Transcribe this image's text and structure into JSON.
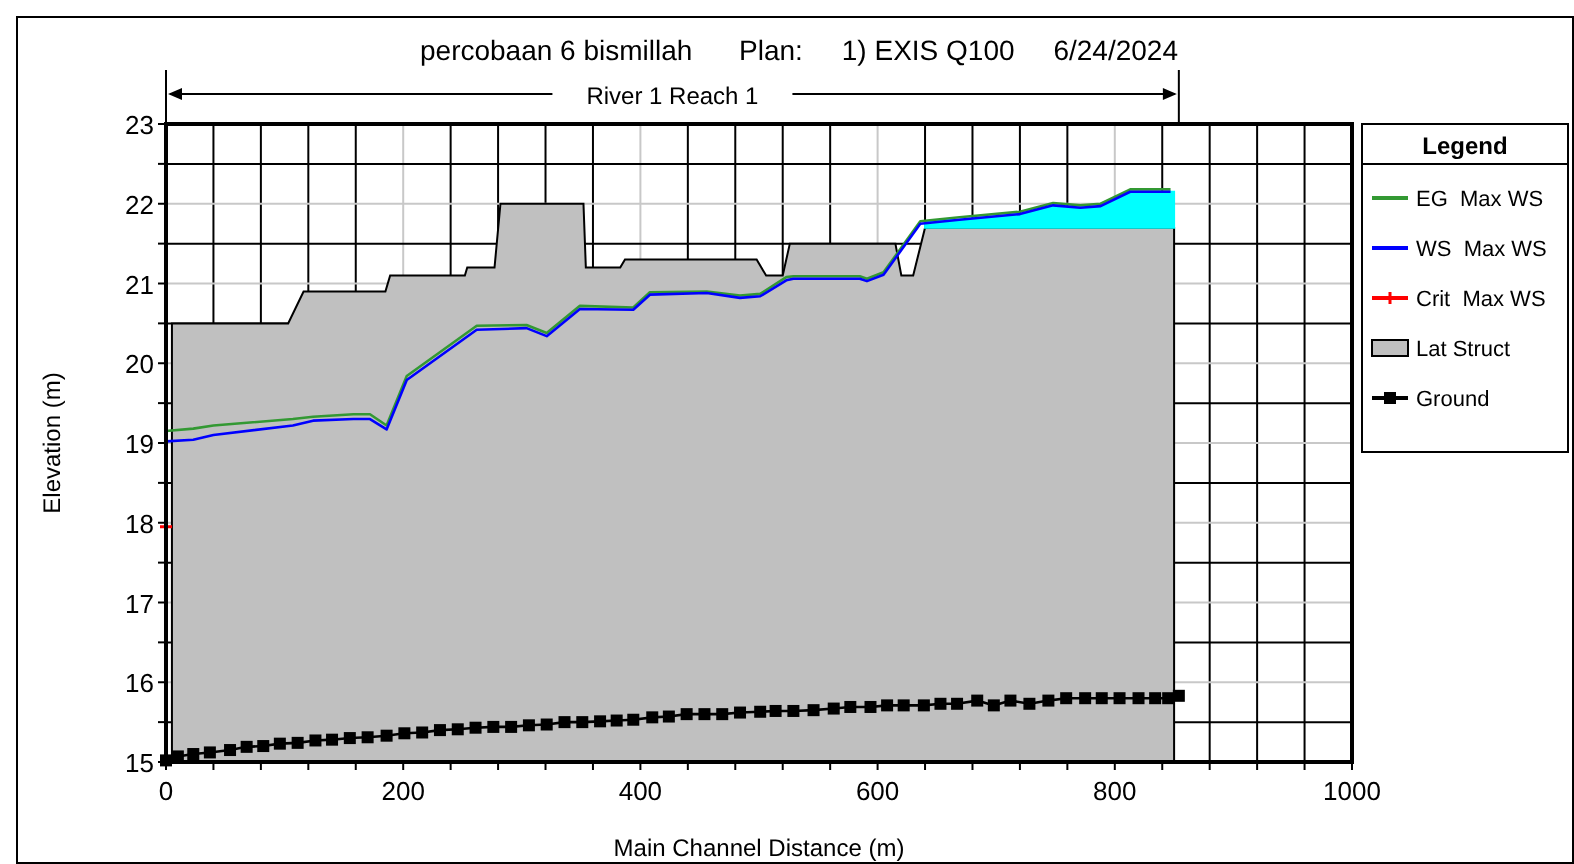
{
  "chart_data": {
    "type": "line",
    "title": "percobaan 6 bismillah      Plan:     1) EXIS Q100     6/24/2024",
    "xlabel": "Main Channel Distance (m)",
    "ylabel": "Elevation (m)",
    "legend_title": "Legend",
    "annotations": [
      "River 1 Reach 1"
    ],
    "xlim": [
      0,
      1000
    ],
    "ylim": [
      15,
      23
    ],
    "xticks": [
      0,
      {
        "value": 40,
        "label": null
      },
      {
        "value": 80,
        "label": null
      },
      {
        "value": 120,
        "label": null
      },
      {
        "value": 160,
        "label": null
      },
      200,
      {
        "value": 240,
        "label": null
      },
      {
        "value": 280,
        "label": null
      },
      {
        "value": 320,
        "label": null
      },
      {
        "value": 360,
        "label": null
      },
      400,
      {
        "value": 440,
        "label": null
      },
      {
        "value": 480,
        "label": null
      },
      {
        "value": 520,
        "label": null
      },
      {
        "value": 560,
        "label": null
      },
      600,
      {
        "value": 640,
        "label": null
      },
      {
        "value": 680,
        "label": null
      },
      {
        "value": 720,
        "label": null
      },
      {
        "value": 760,
        "label": null
      },
      800,
      {
        "value": 840,
        "label": null
      },
      {
        "value": 880,
        "label": null
      },
      {
        "value": 920,
        "label": null
      },
      {
        "value": 960,
        "label": null
      },
      1000
    ],
    "yticks": [
      15,
      {
        "value": 15.5,
        "label": null
      },
      16,
      {
        "value": 16.5,
        "label": null
      },
      17,
      {
        "value": 17.5,
        "label": null
      },
      18,
      {
        "value": 18.5,
        "label": null
      },
      19,
      {
        "value": 19.5,
        "label": null
      },
      20,
      {
        "value": 20.5,
        "label": null
      },
      21,
      {
        "value": 21.5,
        "label": null
      },
      22,
      {
        "value": 22.5,
        "label": null
      },
      23
    ],
    "grid": true,
    "legend": "right",
    "series": [
      {
        "type": "area",
        "color": "#00ffff",
        "x": [
          640,
          669,
          720,
          748,
          771,
          788,
          813,
          850
        ],
        "values": [
          21.78,
          21.8,
          21.87,
          21.98,
          21.95,
          21.97,
          22.15,
          22.15
        ]
      },
      {
        "name": "EG  Max WS",
        "color": "#339933",
        "marker": "none",
        "x": [
          0,
          23,
          40,
          107,
          124,
          158,
          172,
          186,
          203,
          262,
          304,
          321,
          349,
          394,
          408,
          456,
          484,
          501,
          523,
          529,
          585,
          591,
          605,
          636,
          669,
          720,
          748,
          771,
          788,
          813,
          847
        ],
        "values": [
          19.15,
          19.18,
          19.22,
          19.3,
          19.33,
          19.36,
          19.36,
          19.22,
          19.84,
          20.47,
          20.48,
          20.38,
          20.72,
          20.7,
          20.89,
          20.9,
          20.85,
          20.87,
          21.08,
          21.09,
          21.09,
          21.06,
          21.14,
          21.78,
          21.83,
          21.9,
          22.01,
          21.98,
          22.0,
          22.18,
          22.18
        ]
      },
      {
        "name": "WS  Max WS",
        "color": "#0000ff",
        "marker": "none",
        "x": [
          0,
          23,
          40,
          107,
          124,
          158,
          172,
          186,
          203,
          262,
          304,
          321,
          349,
          394,
          408,
          456,
          484,
          501,
          523,
          529,
          585,
          591,
          605,
          636,
          669,
          720,
          748,
          771,
          788,
          813,
          847
        ],
        "values": [
          19.02,
          19.04,
          19.1,
          19.22,
          19.28,
          19.3,
          19.3,
          19.17,
          19.79,
          20.42,
          20.44,
          20.34,
          20.68,
          20.67,
          20.86,
          20.88,
          20.82,
          20.84,
          21.04,
          21.06,
          21.06,
          21.03,
          21.11,
          21.75,
          21.8,
          21.87,
          21.98,
          21.95,
          21.97,
          22.15,
          22.15
        ]
      },
      {
        "name": "Crit  Max WS",
        "color": "#ff0000",
        "marker": "cross",
        "x": [
          0
        ],
        "values": [
          17.95
        ]
      },
      {
        "name": "Lat Struct",
        "type": "area",
        "color": "#c0c0c0",
        "x": [
          5,
          5,
          103,
          116,
          185,
          189,
          252,
          254,
          277,
          282,
          352,
          354,
          383,
          387,
          498,
          506,
          520,
          526,
          615,
          620,
          630,
          640,
          850,
          850
        ],
        "values": [
          15,
          20.5,
          20.5,
          20.9,
          20.9,
          21.1,
          21.1,
          21.2,
          21.2,
          22.0,
          22.0,
          21.2,
          21.2,
          21.3,
          21.3,
          21.1,
          21.1,
          21.5,
          21.5,
          21.1,
          21.1,
          21.7,
          21.7,
          15
        ]
      },
      {
        "name": "Ground",
        "color": "#000000",
        "marker": "square",
        "x": [
          0,
          10,
          23,
          37,
          54,
          68,
          82,
          96,
          111,
          126,
          140,
          155,
          170,
          186,
          201,
          216,
          231,
          246,
          261,
          276,
          291,
          306,
          321,
          336,
          351,
          366,
          380,
          394,
          410,
          424,
          439,
          454,
          469,
          484,
          501,
          514,
          529,
          546,
          563,
          577,
          594,
          608,
          622,
          639,
          653,
          667,
          684,
          698,
          712,
          728,
          744,
          759,
          775,
          789,
          804,
          820,
          834,
          845,
          854
        ],
        "values": [
          15.02,
          15.07,
          15.1,
          15.12,
          15.15,
          15.19,
          15.2,
          15.23,
          15.24,
          15.27,
          15.28,
          15.3,
          15.31,
          15.33,
          15.36,
          15.37,
          15.4,
          15.41,
          15.43,
          15.44,
          15.44,
          15.46,
          15.47,
          15.5,
          15.5,
          15.51,
          15.52,
          15.53,
          15.56,
          15.57,
          15.6,
          15.6,
          15.6,
          15.62,
          15.63,
          15.64,
          15.64,
          15.65,
          15.67,
          15.69,
          15.69,
          15.71,
          15.71,
          15.71,
          15.73,
          15.73,
          15.77,
          15.71,
          15.77,
          15.73,
          15.77,
          15.8,
          15.8,
          15.8,
          15.8,
          15.8,
          15.8,
          15.8,
          15.83
        ]
      }
    ]
  }
}
